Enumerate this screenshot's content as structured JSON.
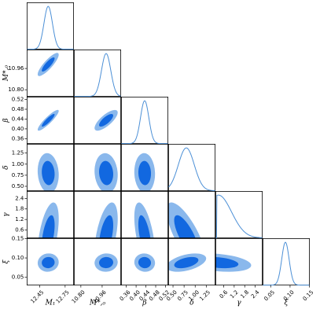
{
  "chart_data": {
    "type": "corner",
    "params": [
      {
        "key": "M1",
        "label": "M₁",
        "range": [
          12.3,
          12.85
        ],
        "ticks": [
          12.45,
          12.75
        ],
        "tick_labels": [
          "12.45",
          "12.75"
        ],
        "mean": 12.55,
        "sd": 0.05
      },
      {
        "key": "Mstar0",
        "label": "M*,₀",
        "range": [
          10.75,
          11.1
        ],
        "ticks": [
          10.8,
          10.96
        ],
        "tick_labels": [
          "10.80",
          "10.96"
        ],
        "mean": 10.99,
        "sd": 0.035
      },
      {
        "key": "beta",
        "label": "β",
        "range": [
          0.34,
          0.53
        ],
        "ticks": [
          0.36,
          0.4,
          0.44,
          0.48,
          0.52
        ],
        "tick_labels": [
          "0.36",
          "0.40",
          "0.44",
          "0.48",
          "0.52"
        ],
        "mean": 0.435,
        "sd": 0.017
      },
      {
        "key": "delta",
        "label": "δ",
        "range": [
          0.4,
          1.45
        ],
        "ticks": [
          0.5,
          0.75,
          1.0,
          1.25
        ],
        "tick_labels": [
          "0.50",
          "0.75",
          "1.00",
          "1.25"
        ],
        "mean": 0.8,
        "sd": 0.18
      },
      {
        "key": "gamma",
        "label": "γ",
        "range": [
          0.15,
          2.8
        ],
        "ticks": [
          0.6,
          1.2,
          1.8,
          2.4
        ],
        "tick_labels": [
          "0.6",
          "1.2",
          "1.8",
          "2.4"
        ],
        "mean": 0.3,
        "sd": 0.75,
        "lower_bound": 0.2
      },
      {
        "key": "xi",
        "label": "ξ",
        "range": [
          0.03,
          0.15
        ],
        "ticks": [
          0.05,
          0.1,
          0.15
        ],
        "tick_labels": [
          "0.05",
          "0.10",
          "0.15"
        ],
        "mean": 0.088,
        "sd": 0.0095
      }
    ],
    "correlations": [
      [
        1,
        0.85,
        0.9,
        -0.1,
        0.5,
        0.05
      ],
      [
        0.85,
        1,
        0.75,
        -0.1,
        0.5,
        0.05
      ],
      [
        0.9,
        0.75,
        1,
        -0.05,
        -0.55,
        -0.05
      ],
      [
        -0.1,
        -0.1,
        -0.05,
        1,
        -0.75,
        0.45
      ],
      [
        0.5,
        0.5,
        -0.55,
        -0.75,
        1,
        -0.3
      ],
      [
        0.05,
        0.05,
        -0.05,
        0.45,
        -0.3,
        1
      ]
    ],
    "contour_levels": [
      "1-sigma",
      "2-sigma"
    ],
    "colors": {
      "line": "#4b8fd6",
      "inner_fill": "#1268e0",
      "outer_fill": "#8ab8ec"
    },
    "grid": false
  }
}
